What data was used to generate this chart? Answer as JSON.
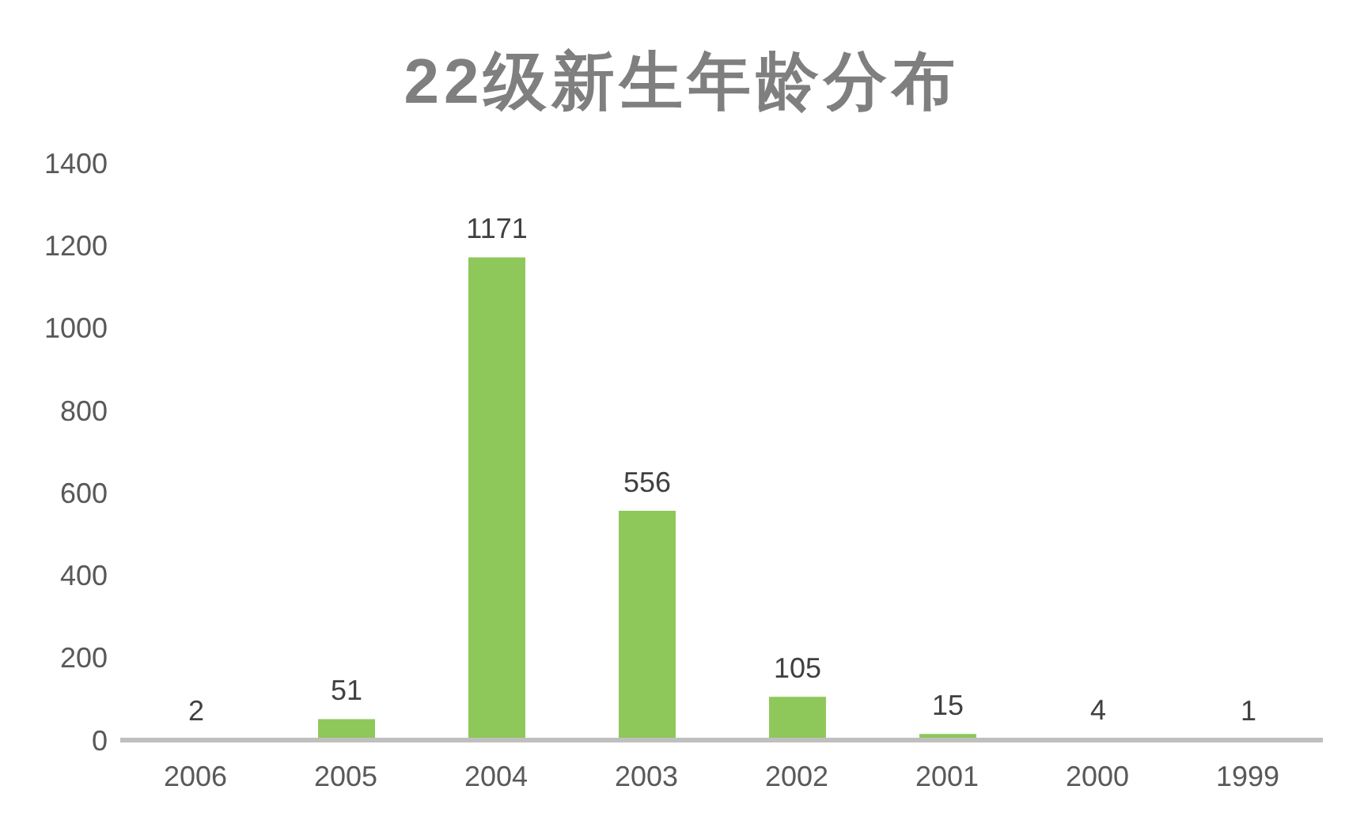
{
  "chart_data": {
    "type": "bar",
    "title": "22级新生年龄分布",
    "categories": [
      "2006",
      "2005",
      "2004",
      "2003",
      "2002",
      "2001",
      "2000",
      "1999"
    ],
    "values": [
      2,
      51,
      1171,
      556,
      105,
      15,
      4,
      1
    ],
    "color": "#8fc85a",
    "ylim": [
      0,
      1400
    ],
    "yticks": [
      0,
      200,
      400,
      600,
      800,
      1000,
      1200,
      1400
    ],
    "grid": false,
    "data_labels": true
  }
}
